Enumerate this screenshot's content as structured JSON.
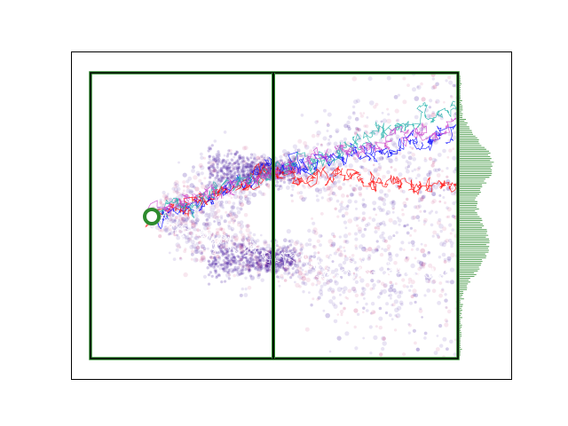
{
  "figure": {
    "description_elements": [
      "axes-frame",
      "simulation-box",
      "central-barrier",
      "source-marker",
      "density-cloud",
      "random-walk-paths",
      "exit-histogram"
    ]
  },
  "colors": {
    "frame": "#000000",
    "box_outline": "#000000",
    "box_highlight": "#2e8b2e",
    "barrier": "#000000",
    "source_ring": "#228b22",
    "source_center": "#ffffff",
    "histogram": "#2e8b2e",
    "cloud_primary": "#3a0c9a",
    "cloud_secondary": "#c0206a",
    "paths": [
      "#0000ff",
      "#ff0000",
      "#20b2aa",
      "#cc44cc",
      "#ffffff"
    ]
  },
  "chart_data": {
    "type": "scatter",
    "grid": false,
    "legend": "none",
    "series": [
      {
        "color": "#0000ff",
        "kind": "path"
      },
      {
        "color": "#ff0000",
        "kind": "path"
      },
      {
        "color": "#20b2aa",
        "kind": "path"
      },
      {
        "color": "#cc44cc",
        "kind": "path"
      },
      {
        "color": "#ffffff",
        "kind": "path"
      }
    ],
    "histogram": {
      "orientation": "horizontal",
      "side": "right",
      "shape": "bimodal",
      "peaks": [
        "upper-third",
        "middle-lower"
      ]
    }
  }
}
